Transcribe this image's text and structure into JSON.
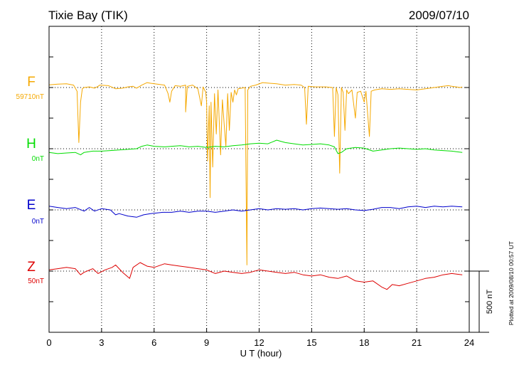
{
  "header": {
    "title": "Tixie Bay (TIK)",
    "date": "2009/07/10"
  },
  "footer": {
    "plotted_note": "Plotted at 2009/08/10 00:57 UT"
  },
  "chart_data": {
    "type": "line",
    "title": "Tixie Bay (TIK)",
    "date": "2009/07/10",
    "xlabel": "U T (hour)",
    "xlim": [
      0,
      24
    ],
    "xticks": [
      "0",
      "3",
      "6",
      "9",
      "12",
      "15",
      "18",
      "21",
      "24"
    ],
    "grid": "dotted vertical lines every 3 hours; dotted baseline per component",
    "scale_bar": {
      "label": "500 nT",
      "value_nT": 500
    },
    "series": [
      {
        "name": "F",
        "baseline_label": "59710nT",
        "color": "#f5a800",
        "values_rel_nT": [
          [
            0,
            22
          ],
          [
            0.5,
            28
          ],
          [
            1,
            30
          ],
          [
            1.4,
            20
          ],
          [
            1.6,
            -30
          ],
          [
            1.7,
            -450
          ],
          [
            1.8,
            -120
          ],
          [
            1.9,
            -10
          ],
          [
            2,
            0
          ],
          [
            2.3,
            5
          ],
          [
            2.6,
            -5
          ],
          [
            2.8,
            10
          ],
          [
            2.9,
            20
          ],
          [
            3.4,
            15
          ],
          [
            3.8,
            -10
          ],
          [
            4.2,
            -5
          ],
          [
            4.5,
            5
          ],
          [
            4.8,
            10
          ],
          [
            5,
            -5
          ],
          [
            5.3,
            20
          ],
          [
            5.6,
            40
          ],
          [
            5.8,
            35
          ],
          [
            6.6,
            20
          ],
          [
            6.8,
            -50
          ],
          [
            6.9,
            -120
          ],
          [
            7,
            -30
          ],
          [
            7.2,
            15
          ],
          [
            7.5,
            10
          ],
          [
            7.8,
            20
          ],
          [
            7.8,
            -200
          ],
          [
            7.9,
            10
          ],
          [
            8.2,
            20
          ],
          [
            8.5,
            -10
          ],
          [
            8.7,
            -150
          ],
          [
            8.8,
            5
          ],
          [
            8.95,
            -40
          ],
          [
            9,
            -120
          ],
          [
            9.05,
            -600
          ],
          [
            9.15,
            -150
          ],
          [
            9.2,
            -900
          ],
          [
            9.25,
            -120
          ],
          [
            9.35,
            -650
          ],
          [
            9.45,
            -50
          ],
          [
            9.55,
            -380
          ],
          [
            9.65,
            -20
          ],
          [
            9.8,
            -550
          ],
          [
            9.9,
            -100
          ],
          [
            10,
            -300
          ],
          [
            10.1,
            -480
          ],
          [
            10.2,
            -50
          ],
          [
            10.3,
            -350
          ],
          [
            10.4,
            -40
          ],
          [
            10.5,
            -120
          ],
          [
            10.6,
            -20
          ],
          [
            10.7,
            -60
          ],
          [
            10.8,
            -10
          ],
          [
            11.2,
            0
          ],
          [
            11.3,
            -1450
          ],
          [
            11.35,
            -20
          ],
          [
            11.5,
            10
          ],
          [
            11.8,
            20
          ],
          [
            12.2,
            40
          ],
          [
            12.6,
            35
          ],
          [
            13,
            30
          ],
          [
            13.5,
            20
          ],
          [
            14,
            25
          ],
          [
            14.4,
            20
          ],
          [
            14.6,
            0
          ],
          [
            14.7,
            -300
          ],
          [
            14.8,
            10
          ],
          [
            15.2,
            5
          ],
          [
            15.8,
            5
          ],
          [
            16.2,
            0
          ],
          [
            16.3,
            -400
          ],
          [
            16.4,
            0
          ],
          [
            16.5,
            -60
          ],
          [
            16.6,
            -700
          ],
          [
            16.7,
            0
          ],
          [
            16.8,
            -40
          ],
          [
            16.9,
            -350
          ],
          [
            17,
            -20
          ],
          [
            17.1,
            -50
          ],
          [
            17.3,
            -20
          ],
          [
            17.5,
            -250
          ],
          [
            17.6,
            -40
          ],
          [
            17.8,
            -30
          ],
          [
            18,
            -120
          ],
          [
            18.1,
            -30
          ],
          [
            18.3,
            -400
          ],
          [
            18.4,
            -30
          ],
          [
            18.6,
            -20
          ],
          [
            19,
            -10
          ],
          [
            19.5,
            -15
          ],
          [
            20,
            -10
          ],
          [
            20.5,
            -15
          ],
          [
            21,
            -20
          ],
          [
            21.5,
            -10
          ],
          [
            22,
            0
          ],
          [
            22.5,
            10
          ],
          [
            22.8,
            15
          ],
          [
            23,
            10
          ],
          [
            23.5,
            0
          ],
          [
            23.6,
            5
          ]
        ]
      },
      {
        "name": "H",
        "baseline_label": "0nT",
        "color": "#00dd00",
        "values_rel_nT": [
          [
            0,
            -30
          ],
          [
            0.5,
            -40
          ],
          [
            1,
            -35
          ],
          [
            1.5,
            -30
          ],
          [
            1.8,
            -50
          ],
          [
            2,
            -30
          ],
          [
            2.5,
            -20
          ],
          [
            3,
            -20
          ],
          [
            3.5,
            -15
          ],
          [
            4,
            -10
          ],
          [
            4.5,
            -5
          ],
          [
            5,
            0
          ],
          [
            5.3,
            20
          ],
          [
            5.6,
            30
          ],
          [
            6,
            20
          ],
          [
            6.6,
            15
          ],
          [
            7,
            20
          ],
          [
            7.5,
            25
          ],
          [
            8,
            15
          ],
          [
            8.5,
            20
          ],
          [
            9,
            10
          ],
          [
            9.5,
            20
          ],
          [
            10,
            15
          ],
          [
            10.5,
            25
          ],
          [
            11,
            30
          ],
          [
            11.5,
            40
          ],
          [
            12,
            45
          ],
          [
            12.5,
            40
          ],
          [
            13,
            70
          ],
          [
            13.5,
            50
          ],
          [
            14,
            40
          ],
          [
            14.5,
            30
          ],
          [
            15,
            35
          ],
          [
            15.5,
            40
          ],
          [
            16,
            30
          ],
          [
            16.3,
            15
          ],
          [
            16.5,
            -40
          ],
          [
            16.7,
            -30
          ],
          [
            17,
            0
          ],
          [
            17.5,
            10
          ],
          [
            18,
            5
          ],
          [
            18.5,
            -20
          ],
          [
            19,
            -10
          ],
          [
            19.5,
            0
          ],
          [
            20,
            5
          ],
          [
            20.5,
            0
          ],
          [
            21,
            -5
          ],
          [
            21.5,
            0
          ],
          [
            22,
            -10
          ],
          [
            22.5,
            -15
          ],
          [
            23,
            -20
          ],
          [
            23.6,
            -30
          ]
        ]
      },
      {
        "name": "E",
        "baseline_label": "0nT",
        "color": "#0000cc",
        "values_rel_nT": [
          [
            0,
            30
          ],
          [
            0.5,
            20
          ],
          [
            1,
            10
          ],
          [
            1.5,
            20
          ],
          [
            2,
            -10
          ],
          [
            2.3,
            20
          ],
          [
            2.6,
            -10
          ],
          [
            3,
            10
          ],
          [
            3.5,
            0
          ],
          [
            3.8,
            -40
          ],
          [
            4,
            -30
          ],
          [
            4.5,
            -50
          ],
          [
            5,
            -60
          ],
          [
            5.4,
            -40
          ],
          [
            5.8,
            -30
          ],
          [
            6.5,
            -20
          ],
          [
            7,
            -20
          ],
          [
            7.5,
            -10
          ],
          [
            8,
            -20
          ],
          [
            8.5,
            -10
          ],
          [
            9,
            -10
          ],
          [
            9.5,
            -20
          ],
          [
            10,
            -10
          ],
          [
            10.5,
            0
          ],
          [
            11,
            -10
          ],
          [
            11.5,
            0
          ],
          [
            12,
            10
          ],
          [
            12.5,
            0
          ],
          [
            13,
            10
          ],
          [
            13.5,
            5
          ],
          [
            14,
            10
          ],
          [
            14.5,
            0
          ],
          [
            15,
            10
          ],
          [
            15.5,
            15
          ],
          [
            16,
            10
          ],
          [
            16.5,
            5
          ],
          [
            17,
            10
          ],
          [
            17.5,
            0
          ],
          [
            18,
            -5
          ],
          [
            18.5,
            5
          ],
          [
            19,
            20
          ],
          [
            19.5,
            20
          ],
          [
            20,
            10
          ],
          [
            20.5,
            25
          ],
          [
            21,
            30
          ],
          [
            21.5,
            20
          ],
          [
            22,
            30
          ],
          [
            22.5,
            25
          ],
          [
            23,
            30
          ],
          [
            23.6,
            25
          ]
        ]
      },
      {
        "name": "Z",
        "baseline_label": "50nT",
        "color": "#dd0000",
        "values_rel_nT": [
          [
            0,
            10
          ],
          [
            0.5,
            20
          ],
          [
            1,
            30
          ],
          [
            1.5,
            20
          ],
          [
            1.8,
            -30
          ],
          [
            2,
            -10
          ],
          [
            2.5,
            20
          ],
          [
            2.8,
            -20
          ],
          [
            3.2,
            10
          ],
          [
            3.6,
            30
          ],
          [
            3.8,
            50
          ],
          [
            4.2,
            -10
          ],
          [
            4.6,
            -60
          ],
          [
            4.8,
            30
          ],
          [
            5.2,
            70
          ],
          [
            5.6,
            40
          ],
          [
            6,
            30
          ],
          [
            6.6,
            60
          ],
          [
            7,
            50
          ],
          [
            7.5,
            40
          ],
          [
            8,
            30
          ],
          [
            8.5,
            20
          ],
          [
            9,
            10
          ],
          [
            9.5,
            -20
          ],
          [
            10,
            0
          ],
          [
            10.5,
            -10
          ],
          [
            11,
            -20
          ],
          [
            11.5,
            -10
          ],
          [
            12,
            10
          ],
          [
            12.5,
            0
          ],
          [
            13,
            -10
          ],
          [
            13.5,
            -20
          ],
          [
            14,
            -10
          ],
          [
            14.5,
            -30
          ],
          [
            15,
            -40
          ],
          [
            15.5,
            -30
          ],
          [
            16,
            -50
          ],
          [
            16.5,
            -60
          ],
          [
            17,
            -40
          ],
          [
            17.5,
            -80
          ],
          [
            18,
            -90
          ],
          [
            18.5,
            -80
          ],
          [
            19,
            -130
          ],
          [
            19.3,
            -150
          ],
          [
            19.6,
            -110
          ],
          [
            20,
            -120
          ],
          [
            20.5,
            -100
          ],
          [
            21,
            -80
          ],
          [
            21.5,
            -60
          ],
          [
            22,
            -50
          ],
          [
            22.5,
            -30
          ],
          [
            23,
            -20
          ],
          [
            23.6,
            -30
          ]
        ]
      }
    ]
  }
}
